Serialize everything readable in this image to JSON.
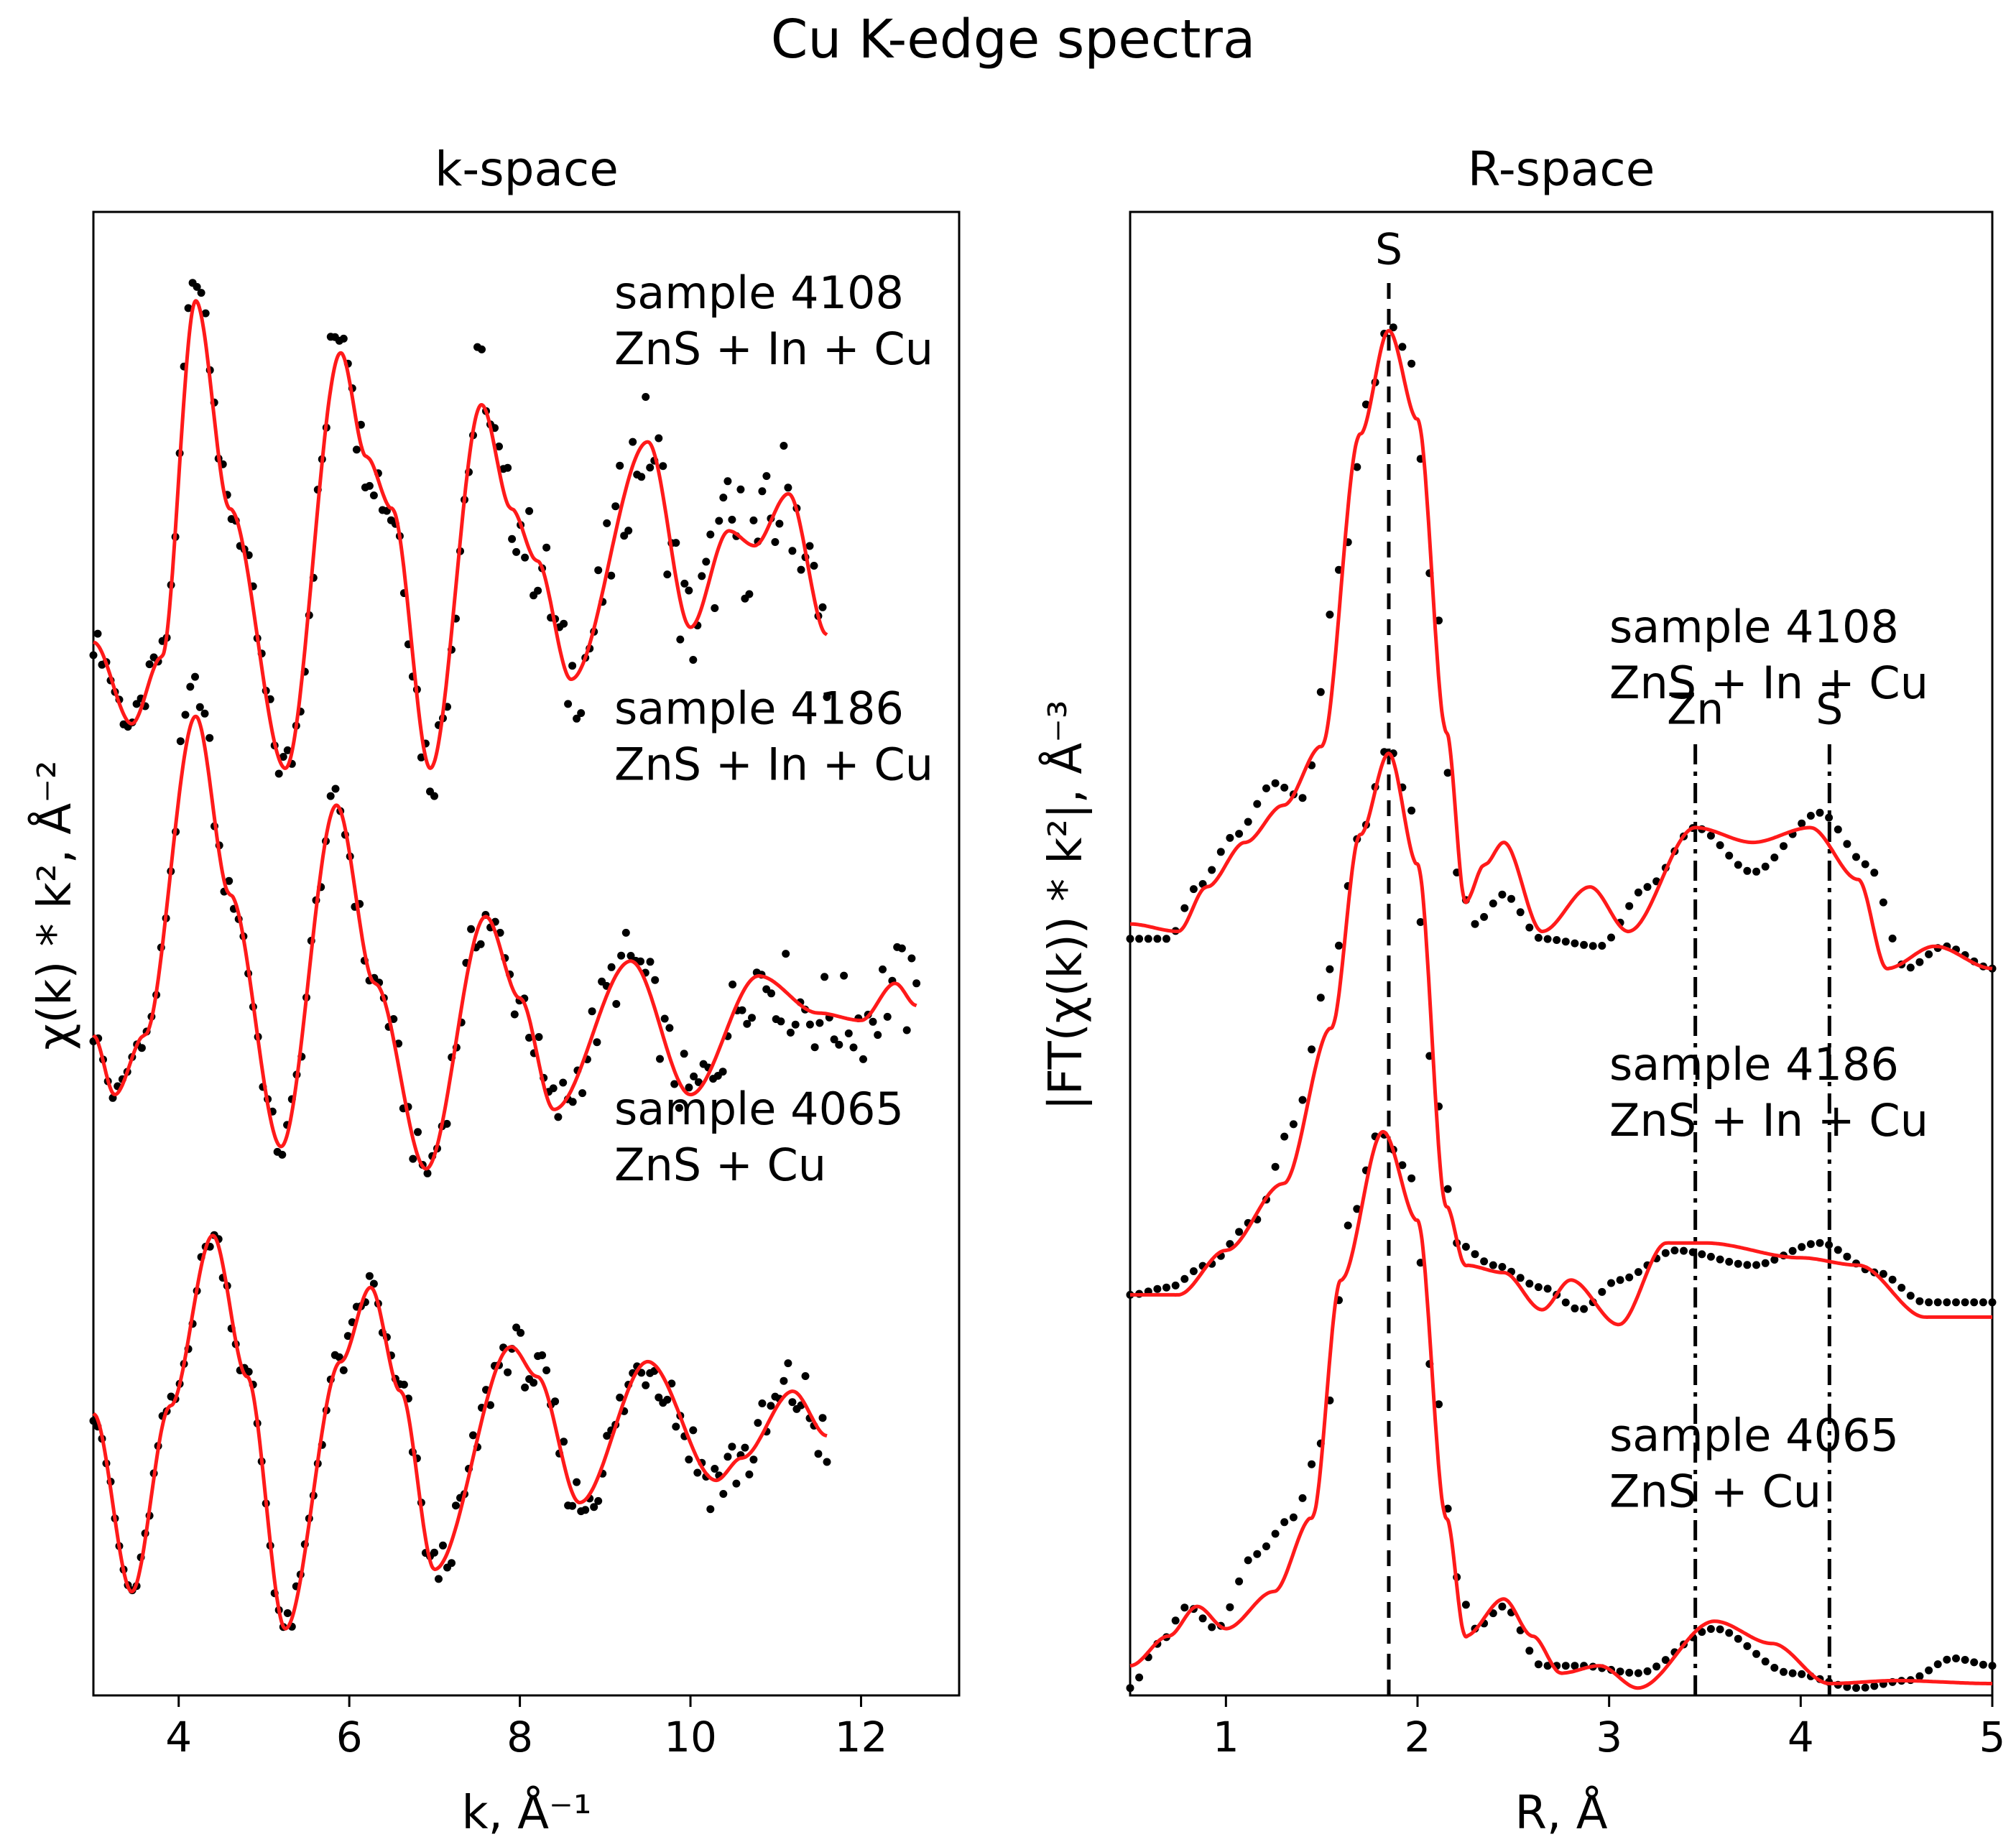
{
  "figure": {
    "title": "Cu K-edge spectra"
  },
  "colors": {
    "fit": "#ff1a1a",
    "data": "#000000"
  },
  "chart_data": [
    {
      "type": "scatter",
      "title": "k-space",
      "xlabel": "k, Å⁻¹",
      "ylabel": "χ(k) * k², Å⁻²",
      "xlim": [
        3,
        13.15
      ],
      "ylim": [
        0,
        1
      ],
      "xticks": [
        4,
        6,
        8,
        10,
        12
      ],
      "yticks": [],
      "series": [
        {
          "name": "sample 4108",
          "label_lines": [
            "sample 4108",
            "ZnS + In + Cu"
          ],
          "offset": 0.71,
          "amp": 0.022,
          "k_max": 11.6,
          "fit_points": [
            [
              3.0,
              0.71
            ],
            [
              3.45,
              0.655
            ],
            [
              3.8,
              0.7
            ],
            [
              4.2,
              0.94
            ],
            [
              4.6,
              0.8
            ],
            [
              5.25,
              0.625
            ],
            [
              5.9,
              0.905
            ],
            [
              6.2,
              0.835
            ],
            [
              6.5,
              0.8
            ],
            [
              6.95,
              0.625
            ],
            [
              7.55,
              0.87
            ],
            [
              7.9,
              0.8
            ],
            [
              8.2,
              0.765
            ],
            [
              8.6,
              0.685
            ],
            [
              9.5,
              0.845
            ],
            [
              10.0,
              0.72
            ],
            [
              10.45,
              0.785
            ],
            [
              10.75,
              0.775
            ],
            [
              11.15,
              0.81
            ],
            [
              11.6,
              0.715
            ]
          ]
        },
        {
          "name": "sample 4186",
          "label_lines": [
            "sample 4186",
            "ZnS + In + Cu"
          ],
          "offset": 0.45,
          "amp": 0.016,
          "k_max": 12.65,
          "fit_points": [
            [
              3.0,
              0.445
            ],
            [
              3.25,
              0.405
            ],
            [
              3.6,
              0.445
            ],
            [
              4.2,
              0.66
            ],
            [
              4.6,
              0.54
            ],
            [
              5.2,
              0.37
            ],
            [
              5.85,
              0.6
            ],
            [
              6.3,
              0.48
            ],
            [
              6.9,
              0.355
            ],
            [
              7.6,
              0.525
            ],
            [
              8.0,
              0.47
            ],
            [
              8.4,
              0.395
            ],
            [
              9.3,
              0.495
            ],
            [
              10.0,
              0.405
            ],
            [
              10.8,
              0.485
            ],
            [
              11.5,
              0.46
            ],
            [
              12.0,
              0.455
            ],
            [
              12.4,
              0.48
            ],
            [
              12.65,
              0.465
            ]
          ]
        },
        {
          "name": "sample 4065",
          "label_lines": [
            "sample 4065",
            "ZnS + Cu"
          ],
          "offset": 0.19,
          "amp": 0.013,
          "k_max": 11.6,
          "fit_points": [
            [
              3.0,
              0.19
            ],
            [
              3.45,
              0.07
            ],
            [
              3.9,
              0.195
            ],
            [
              4.4,
              0.31
            ],
            [
              4.8,
              0.215
            ],
            [
              5.25,
              0.045
            ],
            [
              5.9,
              0.225
            ],
            [
              6.25,
              0.275
            ],
            [
              6.6,
              0.205
            ],
            [
              7.0,
              0.085
            ],
            [
              7.9,
              0.235
            ],
            [
              8.2,
              0.215
            ],
            [
              8.7,
              0.13
            ],
            [
              9.5,
              0.225
            ],
            [
              10.3,
              0.145
            ],
            [
              10.6,
              0.16
            ],
            [
              11.2,
              0.205
            ],
            [
              11.6,
              0.175
            ]
          ]
        }
      ]
    },
    {
      "type": "scatter",
      "title": "R-space",
      "xlabel": "R, Å",
      "ylabel": "|FT(χ(k)) * k²|, Å⁻³",
      "xlim": [
        0.5,
        5.0
      ],
      "ylim": [
        0,
        1
      ],
      "xticks": [
        1,
        2,
        3,
        4,
        5
      ],
      "yticks": [],
      "reference_lines": [
        {
          "label": "S",
          "x": 1.85,
          "y_from": 0.0,
          "y_to": 0.955,
          "style": "dashed",
          "label_y": 0.965
        },
        {
          "label": "Zn",
          "x": 3.45,
          "y_from": 0.0,
          "y_to": 0.645,
          "style": "dashdot",
          "label_y": 0.655
        },
        {
          "label": "S",
          "x": 4.15,
          "y_from": 0.0,
          "y_to": 0.645,
          "style": "dashdot",
          "label_y": 0.655
        }
      ],
      "series": [
        {
          "name": "sample 4108",
          "label_lines": [
            "sample 4108",
            "ZnS + In + Cu"
          ],
          "fit_points": [
            [
              0.5,
              0.52
            ],
            [
              0.75,
              0.515
            ],
            [
              0.9,
              0.545
            ],
            [
              1.1,
              0.575
            ],
            [
              1.3,
              0.6
            ],
            [
              1.5,
              0.64
            ],
            [
              1.7,
              0.85
            ],
            [
              1.85,
              0.92
            ],
            [
              2.0,
              0.86
            ],
            [
              2.15,
              0.65
            ],
            [
              2.25,
              0.535
            ],
            [
              2.35,
              0.56
            ],
            [
              2.45,
              0.575
            ],
            [
              2.65,
              0.515
            ],
            [
              2.9,
              0.545
            ],
            [
              3.1,
              0.515
            ],
            [
              3.45,
              0.585
            ],
            [
              3.75,
              0.575
            ],
            [
              4.05,
              0.585
            ],
            [
              4.3,
              0.55
            ],
            [
              4.45,
              0.49
            ],
            [
              4.7,
              0.505
            ],
            [
              5.0,
              0.49
            ]
          ],
          "data_points": [
            [
              0.5,
              0.51
            ],
            [
              0.7,
              0.51
            ],
            [
              0.85,
              0.545
            ],
            [
              1.05,
              0.58
            ],
            [
              1.25,
              0.615
            ],
            [
              1.4,
              0.605
            ],
            [
              1.6,
              0.76
            ],
            [
              1.75,
              0.875
            ],
            [
              1.85,
              0.925
            ],
            [
              1.95,
              0.905
            ],
            [
              2.1,
              0.73
            ],
            [
              2.2,
              0.555
            ],
            [
              2.3,
              0.52
            ],
            [
              2.45,
              0.54
            ],
            [
              2.65,
              0.51
            ],
            [
              2.95,
              0.505
            ],
            [
              3.2,
              0.545
            ],
            [
              3.45,
              0.585
            ],
            [
              3.75,
              0.555
            ],
            [
              4.1,
              0.595
            ],
            [
              4.35,
              0.56
            ],
            [
              4.55,
              0.49
            ],
            [
              4.75,
              0.505
            ],
            [
              5.0,
              0.49
            ]
          ]
        },
        {
          "name": "sample 4186",
          "label_lines": [
            "sample 4186",
            "ZnS + In + Cu"
          ],
          "fit_points": [
            [
              0.5,
              0.27
            ],
            [
              0.75,
              0.27
            ],
            [
              1.0,
              0.3
            ],
            [
              1.3,
              0.345
            ],
            [
              1.55,
              0.45
            ],
            [
              1.7,
              0.58
            ],
            [
              1.85,
              0.635
            ],
            [
              2.0,
              0.56
            ],
            [
              2.15,
              0.33
            ],
            [
              2.25,
              0.29
            ],
            [
              2.45,
              0.285
            ],
            [
              2.65,
              0.26
            ],
            [
              2.8,
              0.28
            ],
            [
              3.05,
              0.25
            ],
            [
              3.3,
              0.305
            ],
            [
              3.5,
              0.305
            ],
            [
              4.0,
              0.295
            ],
            [
              4.3,
              0.29
            ],
            [
              4.65,
              0.255
            ],
            [
              5.0,
              0.255
            ]
          ],
          "data_points": [
            [
              0.5,
              0.27
            ],
            [
              0.7,
              0.275
            ],
            [
              0.9,
              0.29
            ],
            [
              1.15,
              0.32
            ],
            [
              1.35,
              0.385
            ],
            [
              1.55,
              0.49
            ],
            [
              1.7,
              0.58
            ],
            [
              1.85,
              0.64
            ],
            [
              1.95,
              0.605
            ],
            [
              2.1,
              0.4
            ],
            [
              2.2,
              0.305
            ],
            [
              2.4,
              0.29
            ],
            [
              2.65,
              0.275
            ],
            [
              2.85,
              0.26
            ],
            [
              3.05,
              0.28
            ],
            [
              3.35,
              0.3
            ],
            [
              3.75,
              0.29
            ],
            [
              4.1,
              0.305
            ],
            [
              4.4,
              0.285
            ],
            [
              4.65,
              0.265
            ],
            [
              5.0,
              0.265
            ]
          ]
        },
        {
          "name": "sample 4065",
          "label_lines": [
            "sample 4065",
            "ZnS + Cu"
          ],
          "fit_points": [
            [
              0.5,
              0.02
            ],
            [
              0.7,
              0.04
            ],
            [
              0.85,
              0.06
            ],
            [
              1.0,
              0.045
            ],
            [
              1.25,
              0.07
            ],
            [
              1.45,
              0.12
            ],
            [
              1.6,
              0.28
            ],
            [
              1.82,
              0.38
            ],
            [
              2.0,
              0.32
            ],
            [
              2.15,
              0.12
            ],
            [
              2.25,
              0.04
            ],
            [
              2.45,
              0.065
            ],
            [
              2.6,
              0.04
            ],
            [
              2.75,
              0.015
            ],
            [
              2.95,
              0.02
            ],
            [
              3.15,
              0.005
            ],
            [
              3.55,
              0.05
            ],
            [
              3.85,
              0.035
            ],
            [
              4.15,
              0.008
            ],
            [
              4.5,
              0.01
            ],
            [
              5.0,
              0.008
            ]
          ],
          "data_points": [
            [
              0.5,
              0.005
            ],
            [
              0.65,
              0.035
            ],
            [
              0.8,
              0.06
            ],
            [
              0.95,
              0.045
            ],
            [
              1.15,
              0.095
            ],
            [
              1.35,
              0.12
            ],
            [
              1.5,
              0.17
            ],
            [
              1.65,
              0.32
            ],
            [
              1.8,
              0.38
            ],
            [
              1.95,
              0.355
            ],
            [
              2.1,
              0.2
            ],
            [
              2.2,
              0.08
            ],
            [
              2.3,
              0.045
            ],
            [
              2.45,
              0.06
            ],
            [
              2.65,
              0.02
            ],
            [
              2.85,
              0.02
            ],
            [
              3.15,
              0.015
            ],
            [
              3.55,
              0.045
            ],
            [
              3.95,
              0.015
            ],
            [
              4.3,
              0.005
            ],
            [
              4.55,
              0.01
            ],
            [
              4.8,
              0.025
            ],
            [
              5.0,
              0.02
            ]
          ]
        }
      ]
    }
  ]
}
